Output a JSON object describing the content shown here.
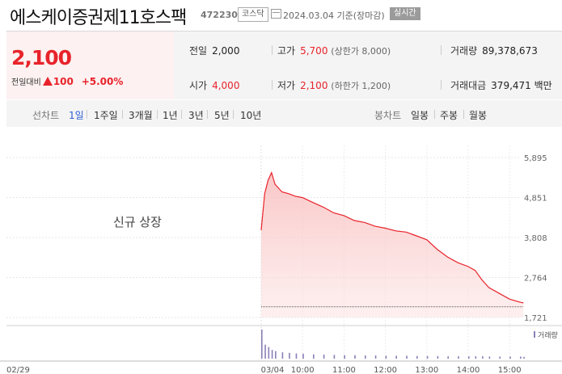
{
  "header": {
    "name": "에스케이증권제11호스팩",
    "code": "472230",
    "market": "코스닥",
    "date": "2024.03.04",
    "basis": "기준(장마감)",
    "realtime": "실시간"
  },
  "quote": {
    "price": "2,100",
    "change_label": "전일대비",
    "change": "100",
    "change_pct": "+5.00%"
  },
  "stats": {
    "prev_close_label": "전일",
    "prev_close": "2,000",
    "high_label": "고가",
    "high": "5,700",
    "upper_limit": "(상한가 8,000)",
    "volume_label": "거래량",
    "volume": "89,378,673",
    "open_label": "시가",
    "open": "4,000",
    "low_label": "저가",
    "low": "2,100",
    "lower_limit": "(하한가 1,200)",
    "amount_label": "거래대금",
    "amount": "379,471",
    "amount_unit": "백만"
  },
  "periods": {
    "label": "선차트",
    "items": [
      "1일",
      "1주일",
      "3개월",
      "1년",
      "3년",
      "5년",
      "10년"
    ],
    "active": "1일"
  },
  "candles": {
    "label": "봉차트",
    "items": [
      "일봉",
      "주봉",
      "월봉"
    ]
  },
  "colors": {
    "up": "#e8232b",
    "active_tab": "#2d5fd3",
    "volume": "#8b7fb8"
  },
  "chart_data": {
    "type": "area",
    "annotation": "신규 상장",
    "y_ticks": [
      "5,895",
      "4,851",
      "3,808",
      "2,764",
      "1,721"
    ],
    "ylim": [
      1721,
      5895
    ],
    "reference_price": 2000,
    "x_labels": [
      "02/29",
      "03/04",
      "10:00",
      "11:00",
      "12:00",
      "13:00",
      "14:00",
      "15:00"
    ],
    "times": [
      "09:00",
      "09:05",
      "09:10",
      "09:15",
      "09:20",
      "09:30",
      "09:40",
      "09:50",
      "10:00",
      "10:15",
      "10:30",
      "10:45",
      "11:00",
      "11:15",
      "11:30",
      "11:45",
      "12:00",
      "12:15",
      "12:30",
      "12:45",
      "13:00",
      "13:15",
      "13:30",
      "13:45",
      "14:00",
      "14:10",
      "14:20",
      "14:30",
      "14:45",
      "15:00",
      "15:15",
      "15:20"
    ],
    "price": [
      4000,
      4950,
      5300,
      5500,
      5200,
      5000,
      4950,
      4880,
      4850,
      4720,
      4600,
      4450,
      4380,
      4250,
      4200,
      4100,
      4050,
      3980,
      3950,
      3850,
      3750,
      3500,
      3300,
      3150,
      3050,
      2950,
      2700,
      2500,
      2350,
      2200,
      2120,
      2100
    ],
    "volume_label": "거래량",
    "volume": [
      100,
      48,
      40,
      30,
      26,
      22,
      20,
      18,
      17,
      15,
      14,
      13,
      12,
      12,
      11,
      11,
      10,
      10,
      10,
      9,
      9,
      9,
      8,
      8,
      8,
      8,
      8,
      7,
      7,
      7,
      7,
      6
    ]
  }
}
